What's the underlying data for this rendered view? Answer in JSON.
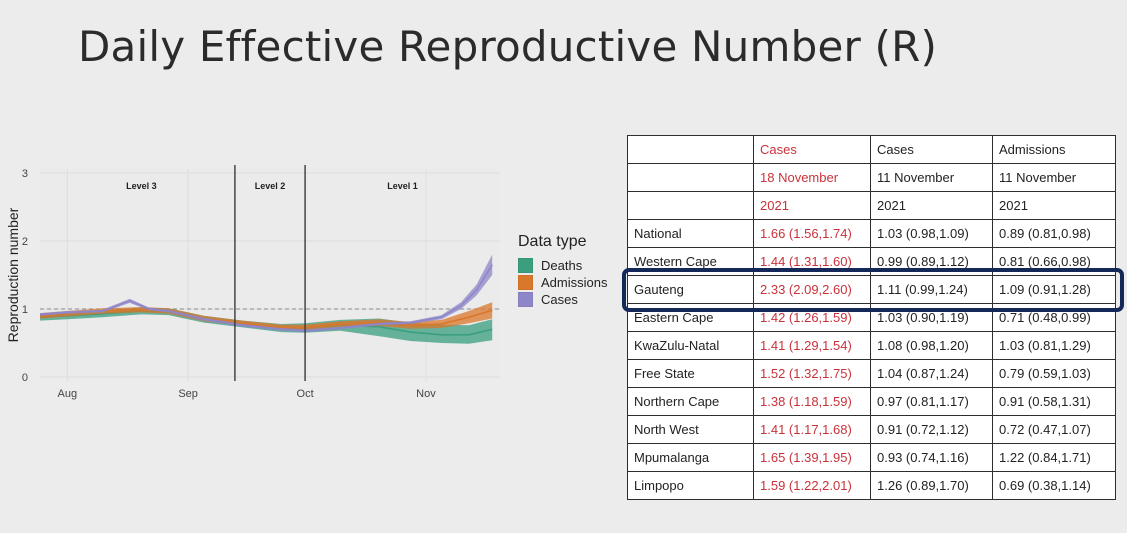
{
  "slide": {
    "title": "Daily Effective Reproductive Number (R)"
  },
  "chart_data": {
    "type": "area",
    "ylabel": "Reproduction number",
    "xlabel": "",
    "ylim": [
      0,
      3
    ],
    "yticks": [
      0,
      1,
      2,
      3
    ],
    "x_axis": "date",
    "xlim": [
      "2021-07-25",
      "2021-11-20"
    ],
    "xticks": [
      {
        "date": "2021-08-01",
        "label": "Aug"
      },
      {
        "date": "2021-09-01",
        "label": "Sep"
      },
      {
        "date": "2021-10-01",
        "label": "Oct"
      },
      {
        "date": "2021-11-01",
        "label": "Nov"
      }
    ],
    "reference_line": 1,
    "level_dividers": [
      "2021-09-13",
      "2021-10-01"
    ],
    "level_labels": [
      {
        "label": "Level 3",
        "date": "2021-08-20"
      },
      {
        "label": "Level 2",
        "date": "2021-09-22"
      },
      {
        "label": "Level 1",
        "date": "2021-10-26"
      }
    ],
    "legend_title": "Data type",
    "legend_position": "right",
    "series": [
      {
        "name": "Deaths",
        "color": "#3a9e7f",
        "x": [
          "2021-07-25",
          "2021-08-01",
          "2021-08-10",
          "2021-08-20",
          "2021-08-27",
          "2021-09-05",
          "2021-09-15",
          "2021-09-25",
          "2021-10-01",
          "2021-10-10",
          "2021-10-20",
          "2021-10-28",
          "2021-11-05",
          "2021-11-12",
          "2021-11-18"
        ],
        "y": [
          0.88,
          0.9,
          0.93,
          0.97,
          0.96,
          0.85,
          0.78,
          0.72,
          0.72,
          0.76,
          0.74,
          0.66,
          0.62,
          0.62,
          0.7
        ],
        "lower": [
          0.83,
          0.85,
          0.88,
          0.92,
          0.91,
          0.8,
          0.73,
          0.66,
          0.65,
          0.68,
          0.6,
          0.53,
          0.5,
          0.49,
          0.54
        ],
        "upper": [
          0.93,
          0.95,
          0.98,
          1.02,
          1.01,
          0.9,
          0.83,
          0.78,
          0.79,
          0.84,
          0.86,
          0.8,
          0.77,
          0.76,
          0.85
        ]
      },
      {
        "name": "Admissions",
        "color": "#d9772b",
        "x": [
          "2021-07-25",
          "2021-08-01",
          "2021-08-10",
          "2021-08-20",
          "2021-08-27",
          "2021-09-05",
          "2021-09-15",
          "2021-09-25",
          "2021-10-01",
          "2021-10-10",
          "2021-10-20",
          "2021-10-28",
          "2021-11-05",
          "2021-11-12",
          "2021-11-18"
        ],
        "y": [
          0.9,
          0.93,
          0.97,
          0.99,
          0.97,
          0.86,
          0.79,
          0.73,
          0.73,
          0.78,
          0.8,
          0.76,
          0.78,
          0.88,
          0.98
        ],
        "lower": [
          0.86,
          0.89,
          0.93,
          0.95,
          0.93,
          0.82,
          0.75,
          0.69,
          0.69,
          0.74,
          0.75,
          0.71,
          0.72,
          0.79,
          0.86
        ],
        "upper": [
          0.94,
          0.97,
          1.01,
          1.03,
          1.01,
          0.9,
          0.83,
          0.77,
          0.77,
          0.82,
          0.85,
          0.81,
          0.84,
          0.97,
          1.1
        ]
      },
      {
        "name": "Cases",
        "color": "#8d86c9",
        "x": [
          "2021-07-25",
          "2021-08-01",
          "2021-08-10",
          "2021-08-17",
          "2021-08-22",
          "2021-08-27",
          "2021-09-05",
          "2021-09-15",
          "2021-09-25",
          "2021-10-01",
          "2021-10-10",
          "2021-10-20",
          "2021-10-28",
          "2021-11-05",
          "2021-11-10",
          "2021-11-14",
          "2021-11-18"
        ],
        "y": [
          0.92,
          0.95,
          0.97,
          1.12,
          1.0,
          0.97,
          0.85,
          0.76,
          0.7,
          0.68,
          0.72,
          0.78,
          0.8,
          0.88,
          1.05,
          1.28,
          1.65
        ],
        "lower": [
          0.9,
          0.93,
          0.95,
          1.09,
          0.98,
          0.95,
          0.83,
          0.74,
          0.68,
          0.66,
          0.7,
          0.76,
          0.78,
          0.85,
          1.0,
          1.2,
          1.5
        ],
        "upper": [
          0.94,
          0.97,
          0.99,
          1.15,
          1.02,
          0.99,
          0.87,
          0.78,
          0.72,
          0.7,
          0.74,
          0.8,
          0.82,
          0.91,
          1.1,
          1.36,
          1.8
        ]
      }
    ]
  },
  "table": {
    "header_top": [
      "",
      "Cases",
      "Cases",
      "Admissions"
    ],
    "header_mid": [
      "",
      "18 November",
      "11 November",
      "11 November"
    ],
    "header_bot": [
      "",
      "2021",
      "2021",
      "2021"
    ],
    "rows": [
      [
        "National",
        "1.66 (1.56,1.74)",
        "1.03 (0.98,1.09)",
        "0.89 (0.81,0.98)"
      ],
      [
        "Western Cape",
        "1.44 (1.31,1.60)",
        "0.99 (0.89,1.12)",
        "0.81 (0.66,0.98)"
      ],
      [
        "Gauteng",
        "2.33 (2.09,2.60)",
        "1.11 (0.99,1.24)",
        "1.09 (0.91,1.28)"
      ],
      [
        "Eastern Cape",
        "1.42 (1.26,1.59)",
        "1.03 (0.90,1.19)",
        "0.71 (0.48,0.99)"
      ],
      [
        "KwaZulu-Natal",
        "1.41 (1.29,1.54)",
        "1.08 (0.98,1.20)",
        "1.03 (0.81,1.29)"
      ],
      [
        "Free State",
        "1.52 (1.32,1.75)",
        "1.04 (0.87,1.24)",
        "0.79 (0.59,1.03)"
      ],
      [
        "Northern Cape",
        "1.38 (1.18,1.59)",
        "0.97 (0.81,1.17)",
        "0.91 (0.58,1.31)"
      ],
      [
        "North West",
        "1.41 (1.17,1.68)",
        "0.91 (0.72,1.12)",
        "0.72 (0.47,1.07)"
      ],
      [
        "Mpumalanga",
        "1.65 (1.39,1.95)",
        "0.93 (0.74,1.16)",
        "1.22 (0.84,1.71)"
      ],
      [
        "Limpopo",
        "1.59 (1.22,2.01)",
        "1.26 (0.89,1.70)",
        "0.69 (0.38,1.14)"
      ]
    ],
    "highlighted_row": "Gauteng",
    "highlight_color": "#15285a",
    "accent_color": "#c9323b"
  }
}
